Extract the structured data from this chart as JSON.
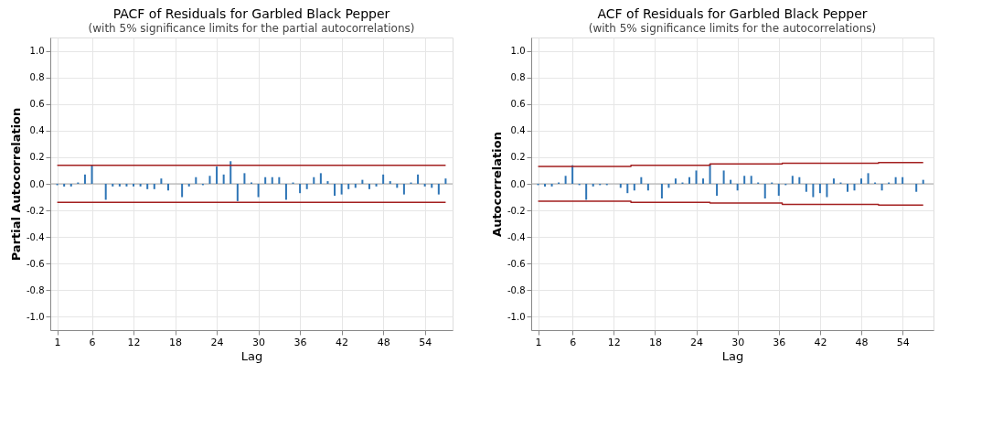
{
  "chart_data": [
    {
      "type": "bar",
      "title": "PACF of Residuals for Garbled Black Pepper",
      "subtitle": "(with 5% significance limits for the partial autocorrelations)",
      "xlabel": "Lag",
      "ylabel": "Partial Autocorrelation",
      "x": [
        1,
        2,
        3,
        4,
        5,
        6,
        7,
        8,
        9,
        10,
        11,
        12,
        13,
        14,
        15,
        16,
        17,
        18,
        19,
        20,
        21,
        22,
        23,
        24,
        25,
        26,
        27,
        28,
        29,
        30,
        31,
        32,
        33,
        34,
        35,
        36,
        37,
        38,
        39,
        40,
        41,
        42,
        43,
        44,
        45,
        46,
        47,
        48,
        49,
        50,
        51,
        52,
        53,
        54,
        55,
        56,
        57
      ],
      "series": [
        {
          "color": "#2e75b6",
          "values": [
            -0.01,
            -0.02,
            -0.02,
            0.01,
            0.07,
            0.14,
            0.0,
            -0.12,
            -0.02,
            -0.02,
            -0.02,
            -0.02,
            -0.02,
            -0.04,
            -0.04,
            0.04,
            -0.05,
            0.0,
            -0.1,
            -0.02,
            0.05,
            -0.01,
            0.06,
            0.13,
            0.07,
            0.17,
            -0.13,
            0.08,
            0.01,
            -0.1,
            0.05,
            0.05,
            0.05,
            -0.12,
            0.01,
            -0.07,
            -0.04,
            0.05,
            0.08,
            0.02,
            -0.09,
            -0.08,
            -0.04,
            -0.03,
            0.03,
            -0.04,
            -0.02,
            0.07,
            0.02,
            -0.03,
            -0.08,
            0.01,
            0.07,
            -0.02,
            -0.03,
            -0.08,
            0.04
          ]
        },
        {
          "type": "line",
          "color": "#a31f1f",
          "x": [
            1,
            57
          ],
          "values": [
            0.14,
            0.14
          ]
        },
        {
          "type": "line",
          "color": "#a31f1f",
          "x": [
            1,
            57
          ],
          "values": [
            -0.14,
            -0.14
          ]
        }
      ],
      "ref_lines": [
        {
          "axis": "y",
          "value": 0,
          "color": "#a6a6a6"
        }
      ],
      "xlim": [
        0,
        58
      ],
      "ylim": [
        -1.1,
        1.1
      ],
      "xticks": [
        1,
        6,
        12,
        18,
        24,
        30,
        36,
        42,
        48,
        54
      ],
      "yticks": [
        {
          "value": 1,
          "label": "1.0"
        },
        {
          "value": 0.8,
          "label": "0.8"
        },
        {
          "value": 0.6,
          "label": "0.6"
        },
        {
          "value": 0.4,
          "label": "0.4"
        },
        {
          "value": 0.2,
          "label": "0.2"
        },
        {
          "value": 0,
          "label": "0.0"
        },
        {
          "value": -0.2,
          "label": "-0.2"
        },
        {
          "value": -0.4,
          "label": "-0.4"
        },
        {
          "value": -0.6,
          "label": "-0.6"
        },
        {
          "value": -0.8,
          "label": "-0.8"
        },
        {
          "value": -1,
          "label": "-1.0"
        }
      ],
      "grid": true
    },
    {
      "type": "bar",
      "title": "ACF of Residuals for Garbled Black Pepper",
      "subtitle": "(with 5% significance limits for the autocorrelations)",
      "xlabel": "Lag",
      "ylabel": "Autocorrelation",
      "x": [
        1,
        2,
        3,
        4,
        5,
        6,
        7,
        8,
        9,
        10,
        11,
        12,
        13,
        14,
        15,
        16,
        17,
        18,
        19,
        20,
        21,
        22,
        23,
        24,
        25,
        26,
        27,
        28,
        29,
        30,
        31,
        32,
        33,
        34,
        35,
        36,
        37,
        38,
        39,
        40,
        41,
        42,
        43,
        44,
        45,
        46,
        47,
        48,
        49,
        50,
        51,
        52,
        53,
        54,
        55,
        56,
        57
      ],
      "series": [
        {
          "color": "#2e75b6",
          "values": [
            -0.01,
            -0.02,
            -0.02,
            0.01,
            0.06,
            0.14,
            -0.01,
            -0.12,
            -0.02,
            -0.01,
            -0.01,
            0.0,
            -0.03,
            -0.07,
            -0.05,
            0.05,
            -0.05,
            0.0,
            -0.11,
            -0.03,
            0.04,
            0.01,
            0.05,
            0.1,
            0.04,
            0.15,
            -0.09,
            0.1,
            0.03,
            -0.05,
            0.06,
            0.06,
            0.01,
            -0.11,
            0.01,
            -0.09,
            -0.01,
            0.06,
            0.05,
            -0.06,
            -0.1,
            -0.07,
            -0.1,
            0.04,
            0.01,
            -0.06,
            -0.05,
            0.04,
            0.08,
            0.01,
            -0.05,
            0.01,
            0.05,
            0.05,
            0.0,
            -0.06,
            0.03
          ]
        },
        {
          "type": "line",
          "color": "#a31f1f",
          "x": [
            1,
            14.5,
            14.5,
            26,
            26,
            36.5,
            36.5,
            50.5,
            50.5,
            57
          ],
          "values": [
            0.13,
            0.13,
            0.14,
            0.14,
            0.15,
            0.15,
            0.155,
            0.155,
            0.16,
            0.16
          ]
        },
        {
          "type": "line",
          "color": "#a31f1f",
          "x": [
            1,
            14.5,
            14.5,
            26,
            26,
            36.5,
            36.5,
            50.5,
            50.5,
            57
          ],
          "values": [
            -0.13,
            -0.13,
            -0.14,
            -0.14,
            -0.145,
            -0.145,
            -0.155,
            -0.155,
            -0.16,
            -0.16
          ]
        }
      ],
      "ref_lines": [
        {
          "axis": "y",
          "value": 0,
          "color": "#a6a6a6"
        }
      ],
      "xlim": [
        0,
        58.5
      ],
      "ylim": [
        -1.1,
        1.1
      ],
      "xticks": [
        1,
        6,
        12,
        18,
        24,
        30,
        36,
        42,
        48,
        54
      ],
      "yticks": [
        {
          "value": 1,
          "label": "1.0"
        },
        {
          "value": 0.8,
          "label": "0.8"
        },
        {
          "value": 0.6,
          "label": "0.6"
        },
        {
          "value": 0.4,
          "label": "0.4"
        },
        {
          "value": 0.2,
          "label": "0.2"
        },
        {
          "value": 0,
          "label": "0.0"
        },
        {
          "value": -0.2,
          "label": "-0.2"
        },
        {
          "value": -0.4,
          "label": "-0.4"
        },
        {
          "value": -0.6,
          "label": "-0.6"
        },
        {
          "value": -0.8,
          "label": "-0.8"
        },
        {
          "value": -1,
          "label": "-1.0"
        }
      ],
      "grid": true
    }
  ]
}
